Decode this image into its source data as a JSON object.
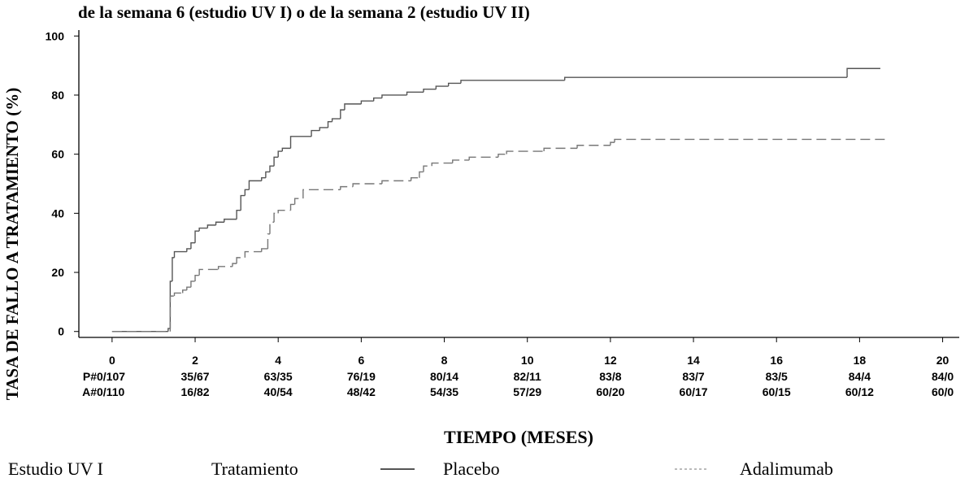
{
  "chart_data": {
    "type": "line",
    "step": true,
    "title": "de la semana 6 (estudio UV I) o de la semana 2 (estudio UV II)",
    "ylabel": "TASA DE FALLO A TRATAMIENTO (%)",
    "xlabel": "TIEMPO (MESES)",
    "xlim": [
      -0.8,
      20.4
    ],
    "ylim": [
      -2,
      102
    ],
    "xticks": [
      0,
      2,
      4,
      6,
      8,
      10,
      12,
      14,
      16,
      18,
      20
    ],
    "yticks": [
      0,
      20,
      40,
      60,
      80,
      100
    ],
    "series": [
      {
        "name": "Placebo",
        "color": "#555555",
        "dash": false,
        "x": [
          0,
          1.35,
          1.4,
          1.45,
          1.5,
          1.8,
          1.9,
          2.0,
          2.1,
          2.3,
          2.5,
          2.7,
          3.0,
          3.1,
          3.2,
          3.3,
          3.6,
          3.7,
          3.8,
          3.9,
          4.0,
          4.1,
          4.3,
          4.8,
          5.0,
          5.2,
          5.3,
          5.5,
          5.6,
          6.0,
          6.3,
          6.5,
          7.1,
          7.5,
          7.8,
          8.1,
          8.4,
          10.9,
          17.7,
          18.5
        ],
        "values": [
          0,
          1,
          17,
          25,
          27,
          28,
          30,
          34,
          35,
          36,
          37,
          38,
          41,
          46,
          48,
          51,
          52,
          54,
          56,
          59,
          61,
          62,
          66,
          68,
          69,
          71,
          72,
          75,
          77,
          78,
          79,
          80,
          81,
          82,
          83,
          84,
          85,
          86,
          89,
          89
        ]
      },
      {
        "name": "Adalimumab",
        "color": "#777777",
        "dash": true,
        "x": [
          0,
          1.4,
          1.5,
          1.7,
          1.8,
          1.9,
          2.0,
          2.1,
          2.56,
          2.9,
          3.0,
          3.2,
          3.6,
          3.75,
          3.8,
          3.9,
          4.0,
          4.3,
          4.4,
          4.6,
          5.5,
          5.8,
          6.5,
          7.2,
          7.4,
          7.5,
          7.7,
          8.2,
          8.6,
          9.3,
          9.5,
          10.4,
          11.2,
          12.0,
          12.1,
          18.7
        ],
        "values": [
          0,
          12,
          13,
          14,
          15,
          17,
          19,
          21,
          22,
          23,
          25,
          27,
          28,
          33,
          37,
          40,
          41,
          43,
          45,
          48,
          49,
          50,
          51,
          52,
          54,
          56,
          57,
          58,
          59,
          60,
          61,
          62,
          63,
          64,
          65,
          65
        ]
      }
    ],
    "risk_table": [
      {
        "label": "P#",
        "values": [
          "0/107",
          "35/67",
          "63/35",
          "76/19",
          "80/14",
          "82/11",
          "83/8",
          "83/7",
          "83/5",
          "84/4",
          "84/0"
        ]
      },
      {
        "label": "A#",
        "values": [
          "0/110",
          "16/82",
          "40/54",
          "48/42",
          "54/35",
          "57/29",
          "60/20",
          "60/17",
          "60/15",
          "60/12",
          "60/0"
        ]
      }
    ],
    "legend": {
      "study": "Estudio UV I",
      "group": "Tratamiento"
    }
  }
}
